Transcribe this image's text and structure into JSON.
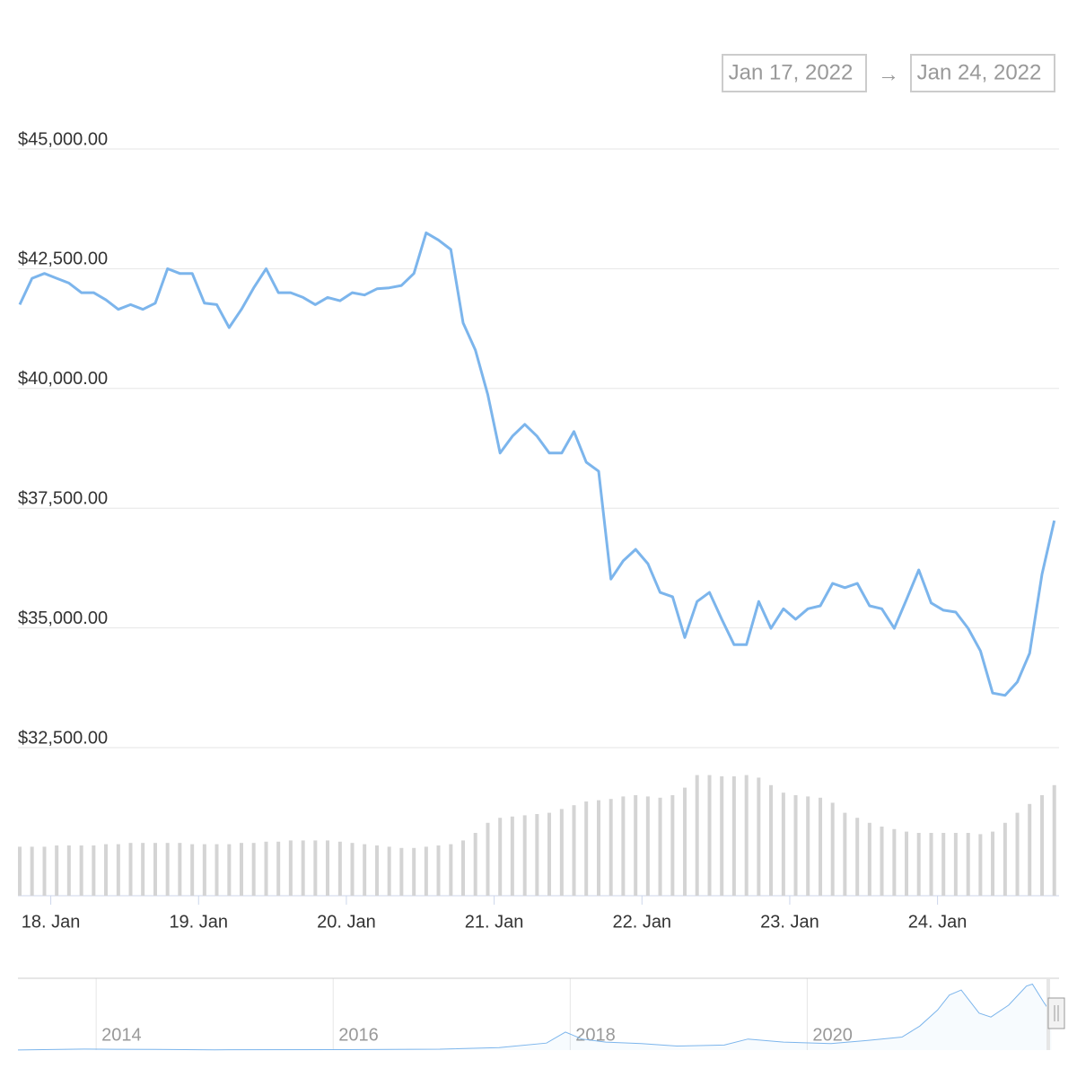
{
  "range": {
    "from": "Jan 17, 2022",
    "arrow": "→",
    "to": "Jan 24, 2022"
  },
  "chart_data": [
    {
      "type": "line",
      "x": [
        17.79,
        17.873,
        17.957,
        18.04,
        18.123,
        18.207,
        18.29,
        18.373,
        18.457,
        18.54,
        18.623,
        18.707,
        18.79,
        18.873,
        18.957,
        19.04,
        19.123,
        19.207,
        19.29,
        19.373,
        19.457,
        19.54,
        19.623,
        19.707,
        19.79,
        19.873,
        19.957,
        20.04,
        20.123,
        20.207,
        20.29,
        20.373,
        20.457,
        20.54,
        20.623,
        20.707,
        20.79,
        20.873,
        20.957,
        21.04,
        21.123,
        21.207,
        21.29,
        21.373,
        21.457,
        21.54,
        21.623,
        21.707,
        21.79,
        21.873,
        21.957,
        22.04,
        22.123,
        22.207,
        22.29,
        22.373,
        22.457,
        22.54,
        22.623,
        22.707,
        22.79,
        22.873,
        22.957,
        23.04,
        23.123,
        23.207,
        23.29,
        23.373,
        23.457,
        23.54,
        23.623,
        23.707,
        23.79,
        23.873,
        23.957,
        24.04,
        24.123,
        24.207,
        24.29,
        24.373,
        24.457,
        24.54,
        24.623,
        24.707,
        24.79
      ],
      "series": [
        {
          "color": "#7cb5ec",
          "values": [
            41750,
            42300,
            42400,
            42300,
            42200,
            42000,
            42000,
            41850,
            41650,
            41750,
            41650,
            41780,
            42500,
            42400,
            42400,
            41780,
            41750,
            41270,
            41650,
            42100,
            42500,
            42000,
            42000,
            41900,
            41750,
            41900,
            41830,
            42000,
            41950,
            42080,
            42100,
            42150,
            42400,
            43250,
            43100,
            42900,
            41370,
            40800,
            39870,
            38650,
            39000,
            39250,
            39000,
            38650,
            38650,
            39100,
            38460,
            38270,
            36020,
            36400,
            36640,
            36340,
            35740,
            35650,
            34800,
            35550,
            35740,
            35180,
            34650,
            34650,
            35550,
            34990,
            35400,
            35180,
            35400,
            35460,
            35930,
            35840,
            35930,
            35460,
            35400,
            34990,
            35590,
            36210,
            35520,
            35370,
            35330,
            34990,
            34520,
            33640,
            33590,
            33870,
            34470,
            36120,
            37240
          ]
        },
        {
          "type": "column",
          "axis": "y2",
          "color": "#d4d4d4",
          "values": [
            39,
            39,
            39,
            40,
            40,
            40,
            40,
            41,
            41,
            42,
            42,
            42,
            42,
            42,
            41,
            41,
            41,
            41,
            42,
            42,
            43,
            43,
            44,
            44,
            44,
            44,
            43,
            42,
            41,
            40,
            39,
            38,
            38,
            39,
            40,
            41,
            44,
            50,
            58,
            62,
            63,
            64,
            65,
            66,
            69,
            72,
            75,
            76,
            77,
            79,
            80,
            79,
            78,
            80,
            86,
            96,
            96,
            95,
            95,
            96,
            94,
            88,
            82,
            80,
            79,
            78,
            74,
            66,
            62,
            58,
            55,
            53,
            51,
            50,
            50,
            50,
            50,
            50,
            49,
            51,
            58,
            66,
            73,
            80,
            88
          ]
        }
      ],
      "xlim": [
        17.79,
        24.81
      ],
      "xticks": [
        {
          "value": 18,
          "label": "18. Jan"
        },
        {
          "value": 19,
          "label": "19. Jan"
        },
        {
          "value": 20,
          "label": "20. Jan"
        },
        {
          "value": 21,
          "label": "21. Jan"
        },
        {
          "value": 22,
          "label": "22. Jan"
        },
        {
          "value": 23,
          "label": "23. Jan"
        },
        {
          "value": 24,
          "label": "24. Jan"
        }
      ],
      "ylim": [
        32500,
        45500
      ],
      "yticks": [
        {
          "value": 32500,
          "label": "$32,500.00"
        },
        {
          "value": 35000,
          "label": "$35,000.00"
        },
        {
          "value": 37500,
          "label": "$37,500.00"
        },
        {
          "value": 40000,
          "label": "$40,000.00"
        },
        {
          "value": 42500,
          "label": "$42,500.00"
        },
        {
          "value": 45000,
          "label": "$45,000.00"
        }
      ],
      "y2lim": [
        0,
        100
      ],
      "grid": true
    },
    {
      "type": "area",
      "x": [
        2013.34,
        2013.9,
        2014.5,
        2015,
        2016,
        2016.9,
        2017.4,
        2017.8,
        2017.96,
        2018.1,
        2018.3,
        2018.6,
        2018.9,
        2019.3,
        2019.5,
        2019.8,
        2020.2,
        2020.5,
        2020.8,
        2020.95,
        2021.1,
        2021.2,
        2021.3,
        2021.45,
        2021.55,
        2021.7,
        2021.85,
        2021.9,
        2022.0,
        2022.06
      ],
      "values": [
        100,
        1000,
        600,
        300,
        430,
        900,
        2500,
        7000,
        18000,
        11000,
        8000,
        6500,
        4000,
        5000,
        11000,
        8000,
        6500,
        9500,
        13000,
        24000,
        40000,
        55000,
        60000,
        37000,
        33000,
        45000,
        64000,
        66000,
        47000,
        37000
      ],
      "color": "#7cb5ec",
      "xlim": [
        2013.34,
        2022.11
      ],
      "xticks": [
        2014,
        2016,
        2018,
        2020
      ],
      "ylim": [
        0,
        70000
      ],
      "grid": true
    }
  ]
}
